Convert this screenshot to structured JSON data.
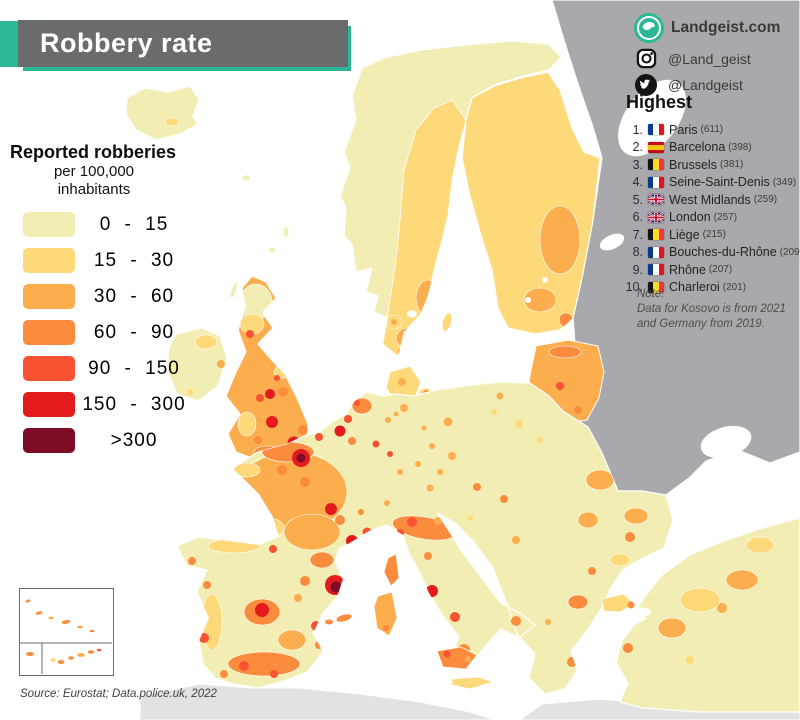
{
  "title": "Robbery rate",
  "legend": {
    "title": "Reported robberies",
    "subtitle1": "per 100,000",
    "subtitle2": "inhabitants",
    "items": [
      {
        "label": "0 - 15",
        "color": "#f2eeb3"
      },
      {
        "label": "15 - 30",
        "color": "#fdd97a"
      },
      {
        "label": "30 - 60",
        "color": "#fcae4f"
      },
      {
        "label": "60 - 90",
        "color": "#fb8c3e"
      },
      {
        "label": "90 - 150",
        "color": "#f95233"
      },
      {
        "label": "150 - 300",
        "color": "#e41b1d"
      },
      {
        "label": ">300",
        "color": "#7d0d26"
      }
    ]
  },
  "branding": {
    "website": "Landgeist.com",
    "instagram_handle": "@Land_geist",
    "twitter_handle": "@Landgeist"
  },
  "highest": {
    "heading": "Highest",
    "entries": [
      {
        "rank": "1.",
        "flag": "fr",
        "country": "France",
        "name": "Paris",
        "value": 611
      },
      {
        "rank": "2.",
        "flag": "es",
        "country": "Spain",
        "name": "Barcelona",
        "value": 398
      },
      {
        "rank": "3.",
        "flag": "be",
        "country": "Belgium",
        "name": "Brussels",
        "value": 381
      },
      {
        "rank": "4.",
        "flag": "fr",
        "country": "France",
        "name": "Seine-Saint-Denis",
        "value": 349
      },
      {
        "rank": "5.",
        "flag": "gb",
        "country": "United Kingdom",
        "name": "West Midlands",
        "value": 259
      },
      {
        "rank": "6.",
        "flag": "gb",
        "country": "United Kingdom",
        "name": "London",
        "value": 257
      },
      {
        "rank": "7.",
        "flag": "be",
        "country": "Belgium",
        "name": "Liège",
        "value": 215
      },
      {
        "rank": "8.",
        "flag": "fr",
        "country": "France",
        "name": "Bouches-du-Rhône",
        "value": 209
      },
      {
        "rank": "9.",
        "flag": "fr",
        "country": "France",
        "name": "Rhône",
        "value": 207
      },
      {
        "rank": "10.",
        "flag": "be",
        "country": "Belgium",
        "name": "Charleroi",
        "value": 201
      }
    ]
  },
  "note": {
    "line1": "Note:",
    "line2": "Data for Kosovo is from 2021",
    "line3": "and Germany from 2019."
  },
  "source": "Source: Eurostat; Data.police.uk, 2022",
  "map": {
    "sea_color": "#ffffff",
    "no_data_color": "#a9a9ad",
    "border_color": "#ffffff",
    "accent_teal": "#2cb795",
    "banner_gray": "#6a6b6d"
  },
  "chart_data": {
    "type": "heatmap",
    "title": "Robbery rate — Reported robberies per 100,000 inhabitants (choropleth map of Europe)",
    "legend_bins": [
      {
        "range": "0 - 15",
        "color": "#f2eeb3"
      },
      {
        "range": "15 - 30",
        "color": "#fdd97a"
      },
      {
        "range": "30 - 60",
        "color": "#fcae4f"
      },
      {
        "range": "60 - 90",
        "color": "#fb8c3e"
      },
      {
        "range": "90 - 150",
        "color": "#f95233"
      },
      {
        "range": "150 - 300",
        "color": "#e41b1d"
      },
      {
        "range": ">300",
        "color": "#7d0d26"
      }
    ],
    "highest_regions": [
      {
        "rank": 1,
        "region": "Paris",
        "country": "France",
        "value": 611
      },
      {
        "rank": 2,
        "region": "Barcelona",
        "country": "Spain",
        "value": 398
      },
      {
        "rank": 3,
        "region": "Brussels",
        "country": "Belgium",
        "value": 381
      },
      {
        "rank": 4,
        "region": "Seine-Saint-Denis",
        "country": "France",
        "value": 349
      },
      {
        "rank": 5,
        "region": "West Midlands",
        "country": "United Kingdom",
        "value": 259
      },
      {
        "rank": 6,
        "region": "London",
        "country": "United Kingdom",
        "value": 257
      },
      {
        "rank": 7,
        "region": "Liège",
        "country": "Belgium",
        "value": 215
      },
      {
        "rank": 8,
        "region": "Bouches-du-Rhône",
        "country": "France",
        "value": 209
      },
      {
        "rank": 9,
        "region": "Rhône",
        "country": "France",
        "value": 207
      },
      {
        "rank": 10,
        "region": "Charleroi",
        "country": "Belgium",
        "value": 201
      }
    ],
    "notes": "Data for Kosovo is from 2021 and Germany from 2019. No data (grey): Russia, Belarus, Ukraine, Moldova, North Africa."
  }
}
